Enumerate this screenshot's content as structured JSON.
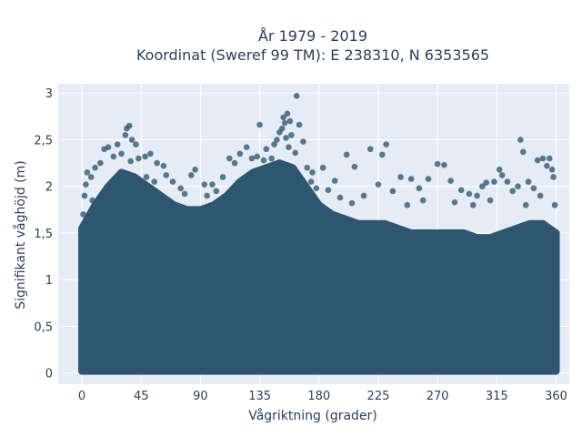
{
  "chart_data": {
    "type": "scatter",
    "title": [
      "År 1979 - 2019",
      "Koordinat (Sweref 99 TM): E 238310, N 6353565"
    ],
    "xlabel": "Vågriktning (grader)",
    "ylabel": "Signifikant våghöjd (m)",
    "xlim": [
      -18,
      370
    ],
    "ylim": [
      -0.12,
      3.1
    ],
    "xticks": [
      0,
      45,
      90,
      135,
      180,
      225,
      270,
      315,
      360
    ],
    "xtick_labels": [
      "0",
      "45",
      "90",
      "135",
      "180",
      "225",
      "270",
      "315",
      "360"
    ],
    "yticks": [
      0,
      0.5,
      1,
      1.5,
      2,
      2.5,
      3
    ],
    "ytick_labels": [
      "0",
      "0,5",
      "1",
      "1,5",
      "2",
      "2,5",
      "3"
    ],
    "grid": true,
    "marker_color": "#2f5670",
    "plot_bg": "#e5ecf6",
    "band": {
      "x": [
        0,
        10,
        20,
        30,
        40,
        50,
        60,
        70,
        80,
        90,
        100,
        110,
        120,
        130,
        140,
        150,
        160,
        170,
        180,
        190,
        200,
        210,
        220,
        230,
        240,
        250,
        260,
        270,
        280,
        290,
        300,
        310,
        320,
        330,
        340,
        350,
        360
      ],
      "y_top": [
        1.55,
        1.8,
        2.0,
        2.15,
        2.1,
        2.0,
        1.9,
        1.8,
        1.75,
        1.75,
        1.8,
        1.9,
        2.05,
        2.15,
        2.2,
        2.25,
        2.2,
        2.0,
        1.8,
        1.7,
        1.65,
        1.6,
        1.6,
        1.6,
        1.55,
        1.5,
        1.5,
        1.5,
        1.5,
        1.5,
        1.45,
        1.45,
        1.5,
        1.55,
        1.6,
        1.6,
        1.5
      ],
      "y_bottom": 0.02
    },
    "points": [
      {
        "x": 2,
        "y": 1.9
      },
      {
        "x": 3,
        "y": 2.02
      },
      {
        "x": 4,
        "y": 2.15
      },
      {
        "x": 7,
        "y": 2.1
      },
      {
        "x": 10,
        "y": 2.2
      },
      {
        "x": 14,
        "y": 2.25
      },
      {
        "x": 17,
        "y": 2.4
      },
      {
        "x": 20,
        "y": 2.42
      },
      {
        "x": 24,
        "y": 2.32
      },
      {
        "x": 27,
        "y": 2.45
      },
      {
        "x": 30,
        "y": 2.35
      },
      {
        "x": 33,
        "y": 2.55
      },
      {
        "x": 34,
        "y": 2.62
      },
      {
        "x": 36,
        "y": 2.65
      },
      {
        "x": 37,
        "y": 2.27
      },
      {
        "x": 38,
        "y": 2.5
      },
      {
        "x": 41,
        "y": 2.45
      },
      {
        "x": 43,
        "y": 2.3
      },
      {
        "x": 48,
        "y": 2.32
      },
      {
        "x": 52,
        "y": 2.35
      },
      {
        "x": 57,
        "y": 2.25
      },
      {
        "x": 62,
        "y": 2.22
      },
      {
        "x": 64,
        "y": 2.12
      },
      {
        "x": 69,
        "y": 2.05
      },
      {
        "x": 75,
        "y": 1.98
      },
      {
        "x": 83,
        "y": 2.12
      },
      {
        "x": 86,
        "y": 2.18
      },
      {
        "x": 93,
        "y": 2.02
      },
      {
        "x": 99,
        "y": 2.02
      },
      {
        "x": 107,
        "y": 2.1
      },
      {
        "x": 112,
        "y": 2.3
      },
      {
        "x": 116,
        "y": 2.25
      },
      {
        "x": 120,
        "y": 2.35
      },
      {
        "x": 125,
        "y": 2.42
      },
      {
        "x": 129,
        "y": 2.3
      },
      {
        "x": 133,
        "y": 2.32
      },
      {
        "x": 135,
        "y": 2.66
      },
      {
        "x": 140,
        "y": 2.4
      },
      {
        "x": 146,
        "y": 2.45
      },
      {
        "x": 148,
        "y": 2.5
      },
      {
        "x": 150,
        "y": 2.58
      },
      {
        "x": 152,
        "y": 2.62
      },
      {
        "x": 153,
        "y": 2.74
      },
      {
        "x": 154,
        "y": 2.68
      },
      {
        "x": 155,
        "y": 2.52
      },
      {
        "x": 156,
        "y": 2.78
      },
      {
        "x": 157,
        "y": 2.42
      },
      {
        "x": 158,
        "y": 2.7
      },
      {
        "x": 159,
        "y": 2.55
      },
      {
        "x": 162,
        "y": 2.36
      },
      {
        "x": 163,
        "y": 2.97
      },
      {
        "x": 165,
        "y": 2.66
      },
      {
        "x": 168,
        "y": 2.48
      },
      {
        "x": 171,
        "y": 2.2
      },
      {
        "x": 175,
        "y": 2.15
      },
      {
        "x": 178,
        "y": 1.98
      },
      {
        "x": 183,
        "y": 2.2
      },
      {
        "x": 187,
        "y": 1.96
      },
      {
        "x": 192,
        "y": 2.06
      },
      {
        "x": 201,
        "y": 2.34
      },
      {
        "x": 207,
        "y": 2.21
      },
      {
        "x": 214,
        "y": 1.9
      },
      {
        "x": 219,
        "y": 2.4
      },
      {
        "x": 225,
        "y": 2.02
      },
      {
        "x": 228,
        "y": 2.34
      },
      {
        "x": 231,
        "y": 2.45
      },
      {
        "x": 236,
        "y": 1.95
      },
      {
        "x": 242,
        "y": 2.1
      },
      {
        "x": 250,
        "y": 2.08
      },
      {
        "x": 256,
        "y": 1.98
      },
      {
        "x": 263,
        "y": 2.08
      },
      {
        "x": 270,
        "y": 2.24
      },
      {
        "x": 275,
        "y": 2.23
      },
      {
        "x": 280,
        "y": 2.06
      },
      {
        "x": 288,
        "y": 1.96
      },
      {
        "x": 294,
        "y": 1.92
      },
      {
        "x": 300,
        "y": 1.9
      },
      {
        "x": 304,
        "y": 2.0
      },
      {
        "x": 307,
        "y": 2.04
      },
      {
        "x": 313,
        "y": 2.05
      },
      {
        "x": 317,
        "y": 2.18
      },
      {
        "x": 319,
        "y": 2.12
      },
      {
        "x": 323,
        "y": 2.05
      },
      {
        "x": 327,
        "y": 1.95
      },
      {
        "x": 331,
        "y": 2.0
      },
      {
        "x": 333,
        "y": 2.5
      },
      {
        "x": 335,
        "y": 2.37
      },
      {
        "x": 339,
        "y": 2.05
      },
      {
        "x": 343,
        "y": 1.98
      },
      {
        "x": 346,
        "y": 2.28
      },
      {
        "x": 350,
        "y": 2.3
      },
      {
        "x": 353,
        "y": 2.22
      },
      {
        "x": 355,
        "y": 2.3
      },
      {
        "x": 357,
        "y": 2.18
      },
      {
        "x": 358,
        "y": 2.1
      },
      {
        "x": 359,
        "y": 1.8
      },
      {
        "x": 1,
        "y": 1.7
      },
      {
        "x": 8,
        "y": 1.85
      },
      {
        "x": 49,
        "y": 2.1
      },
      {
        "x": 55,
        "y": 2.05
      },
      {
        "x": 78,
        "y": 1.92
      },
      {
        "x": 95,
        "y": 1.9
      },
      {
        "x": 102,
        "y": 1.95
      },
      {
        "x": 138,
        "y": 2.28
      },
      {
        "x": 144,
        "y": 2.3
      },
      {
        "x": 174,
        "y": 2.05
      },
      {
        "x": 196,
        "y": 1.88
      },
      {
        "x": 205,
        "y": 1.82
      },
      {
        "x": 247,
        "y": 1.8
      },
      {
        "x": 259,
        "y": 1.85
      },
      {
        "x": 283,
        "y": 1.83
      },
      {
        "x": 297,
        "y": 1.8
      },
      {
        "x": 310,
        "y": 1.85
      },
      {
        "x": 337,
        "y": 1.8
      },
      {
        "x": 348,
        "y": 1.9
      }
    ]
  }
}
